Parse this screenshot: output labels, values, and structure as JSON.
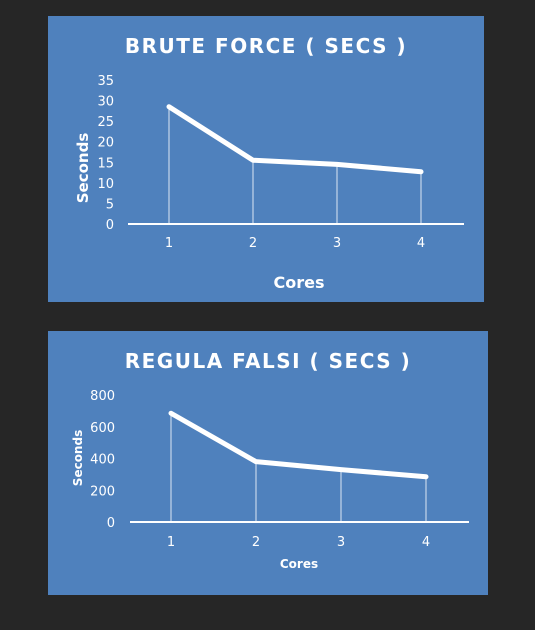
{
  "chart_data": [
    {
      "type": "line",
      "title": "BRUTE FORCE ( SECS )",
      "xlabel": "Cores",
      "ylabel": "Seconds",
      "categories": [
        "1",
        "2",
        "3",
        "4"
      ],
      "series": [
        {
          "values": [
            28.5,
            15.5,
            14.5,
            12.7
          ]
        }
      ],
      "ylim": [
        0,
        35
      ],
      "yticks": [
        0,
        5,
        10,
        15,
        20,
        25,
        30,
        35
      ],
      "drop_lines": true,
      "legend": "none",
      "grid": false,
      "line_color": "#ffffff",
      "background_color": "#4f81bd"
    },
    {
      "type": "line",
      "title": "REGULA FALSI ( SECS )",
      "xlabel": "Cores",
      "ylabel": "Seconds",
      "categories": [
        "1",
        "2",
        "3",
        "4"
      ],
      "series": [
        {
          "values": [
            685,
            380,
            330,
            285
          ]
        }
      ],
      "ylim": [
        0,
        800
      ],
      "yticks": [
        0,
        200,
        400,
        600,
        800
      ],
      "drop_lines": true,
      "legend": "none",
      "grid": false,
      "line_color": "#ffffff",
      "background_color": "#4f81bd"
    }
  ]
}
